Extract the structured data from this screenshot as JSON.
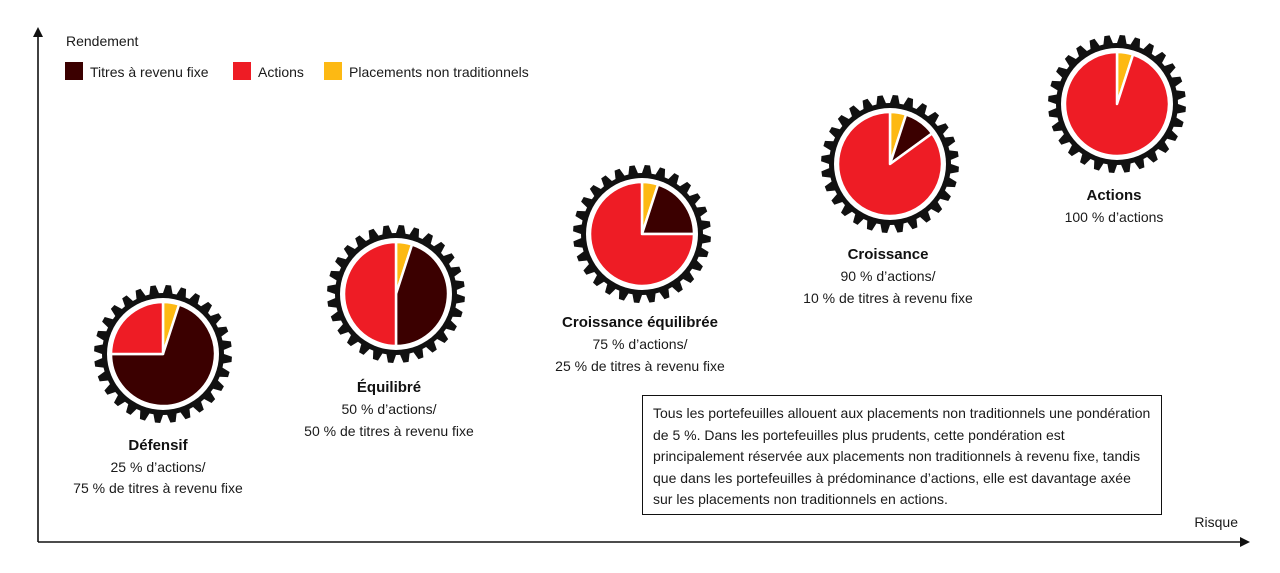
{
  "chart_data": {
    "type": "pie",
    "ylabel": "Rendement",
    "xlabel": "Risque",
    "legend": {
      "placement": "top-left",
      "entries": [
        {
          "label": "Titres à revenu fixe",
          "color": "#3b0000"
        },
        {
          "label": "Actions",
          "color": "#ee1c25"
        },
        {
          "label": "Placements non traditionnels",
          "color": "#fdb913"
        }
      ]
    },
    "portfolios": [
      {
        "name": "Défensif",
        "description": [
          "25 % d’actions/",
          "75 % de titres à revenu fixe"
        ],
        "alloc": {
          "alternatives": 5,
          "fixed_income": 70,
          "equities": 25
        }
      },
      {
        "name": "Équilibré",
        "description": [
          "50 % d’actions/",
          "50 % de titres à revenu fixe"
        ],
        "alloc": {
          "alternatives": 5,
          "fixed_income": 45,
          "equities": 50
        }
      },
      {
        "name": "Croissance équilibrée",
        "description": [
          "75 % d’actions/",
          "25 % de titres à revenu fixe"
        ],
        "alloc": {
          "alternatives": 5,
          "fixed_income": 20,
          "equities": 75
        }
      },
      {
        "name": "Croissance",
        "description": [
          "90 % d’actions/",
          "10 % de titres à revenu fixe"
        ],
        "alloc": {
          "alternatives": 5,
          "fixed_income": 10,
          "equities": 85
        }
      },
      {
        "name": "Actions",
        "description": [
          "100 % d’actions"
        ],
        "alloc": {
          "alternatives": 5,
          "fixed_income": 0,
          "equities": 95
        }
      }
    ],
    "note": "Tous les portefeuilles allouent aux placements non traditionnels une pondération de 5 %. Dans les portefeuilles plus prudents, cette pondération est principalement réservée aux placements non traditionnels à revenu fixe, tandis que dans les portefeuilles à prédominance d’actions, elle est davantage axée sur les placements non traditionnels en actions."
  }
}
